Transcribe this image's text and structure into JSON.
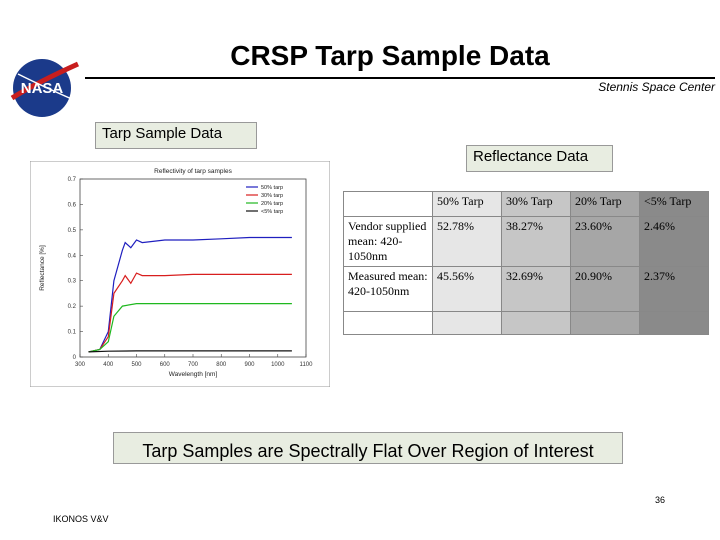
{
  "slide": {
    "title": "CRSP Tarp Sample Data",
    "subtitle": "Stennis Space Center",
    "tarp_label": "Tarp Sample Data",
    "reflectance_label": "Reflectance Data",
    "banner": "Tarp Samples are Spectrally Flat Over Region of Interest",
    "page_number": "36",
    "footer": "IKONOS V&V",
    "logo_text": "NASA"
  },
  "table": {
    "headers": [
      "",
      "50% Tarp",
      "30% Tarp",
      "20% Tarp",
      "<5% Tarp"
    ],
    "rows": [
      [
        "Vendor supplied mean: 420-1050nm",
        "52.78%",
        "38.27%",
        "23.60%",
        "2.46%"
      ],
      [
        "Measured mean: 420-1050nm",
        "45.56%",
        "32.69%",
        "20.90%",
        "2.37%"
      ]
    ]
  },
  "chart_data": {
    "type": "line",
    "title": "Reflectivity of tarp samples",
    "xlabel": "Wavelength [nm]",
    "ylabel": "Reflectance [%]",
    "xlim": [
      300,
      1100
    ],
    "ylim": [
      0,
      0.7
    ],
    "xticks": [
      "300",
      "400",
      "500",
      "600",
      "700",
      "800",
      "900",
      "1000",
      "1100"
    ],
    "yticks": [
      "0",
      "0.1",
      "0.2",
      "0.3",
      "0.4",
      "0.5",
      "0.6",
      "0.7"
    ],
    "legend_position": "top-right",
    "grid": false,
    "series": [
      {
        "name": "50% tarp",
        "color": "#1f1fbf",
        "x": [
          330,
          370,
          400,
          420,
          450,
          460,
          480,
          500,
          520,
          600,
          700,
          800,
          900,
          1000,
          1050
        ],
        "y": [
          0.02,
          0.03,
          0.1,
          0.3,
          0.42,
          0.45,
          0.43,
          0.46,
          0.45,
          0.46,
          0.46,
          0.465,
          0.47,
          0.47,
          0.47
        ]
      },
      {
        "name": "30% tarp",
        "color": "#d81e1e",
        "x": [
          330,
          370,
          400,
          420,
          450,
          460,
          480,
          500,
          520,
          600,
          700,
          800,
          900,
          1000,
          1050
        ],
        "y": [
          0.02,
          0.03,
          0.08,
          0.25,
          0.3,
          0.32,
          0.29,
          0.33,
          0.32,
          0.32,
          0.325,
          0.325,
          0.325,
          0.325,
          0.325
        ]
      },
      {
        "name": "20% tarp",
        "color": "#1fb81f",
        "x": [
          330,
          370,
          400,
          420,
          450,
          500,
          600,
          700,
          800,
          900,
          1000,
          1050
        ],
        "y": [
          0.02,
          0.03,
          0.06,
          0.16,
          0.2,
          0.21,
          0.21,
          0.21,
          0.21,
          0.21,
          0.21,
          0.21
        ]
      },
      {
        "name": "<5% tarp",
        "color": "#111111",
        "x": [
          330,
          400,
          500,
          600,
          700,
          800,
          900,
          1000,
          1050
        ],
        "y": [
          0.02,
          0.023,
          0.024,
          0.024,
          0.024,
          0.024,
          0.024,
          0.024,
          0.024
        ]
      }
    ]
  }
}
